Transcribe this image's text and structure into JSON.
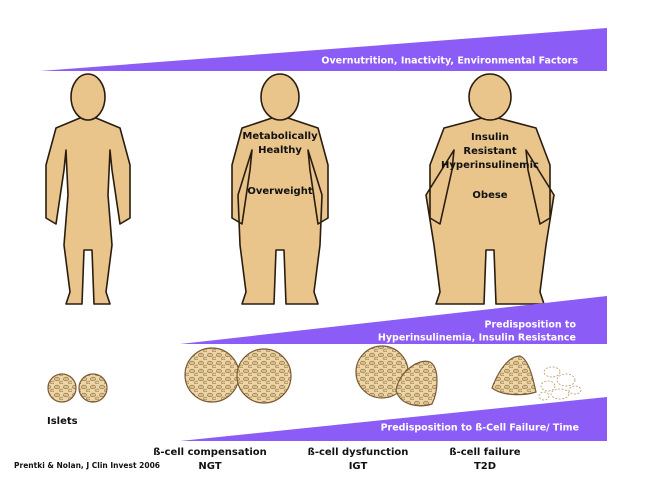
{
  "top_wedge": {
    "label": "Overnutrition, Inactivity, Environmental Factors"
  },
  "figures": [
    {
      "lines": [
        "Metabolically",
        "Healthy"
      ],
      "status": "Overweight"
    },
    {
      "lines": [
        "Insulin",
        "Resistant",
        "Hyperinsulinemic"
      ],
      "status": "Obese"
    }
  ],
  "middle_wedge": {
    "lines": [
      "Predisposition to",
      "Hyperinsulinemia, Insulin Resistance"
    ]
  },
  "islets_label": "Islets",
  "bottom_wedge": {
    "label": "Predisposition to ß-Cell Failure/ Time"
  },
  "stages": [
    {
      "name": "ß-cell compensation",
      "code": "NGT"
    },
    {
      "name": "ß-cell dysfunction",
      "code": "IGT"
    },
    {
      "name": "ß-cell failure",
      "code": "T2D"
    }
  ],
  "citation": "Prentki & Nolan,  J Clin Invest 2006"
}
